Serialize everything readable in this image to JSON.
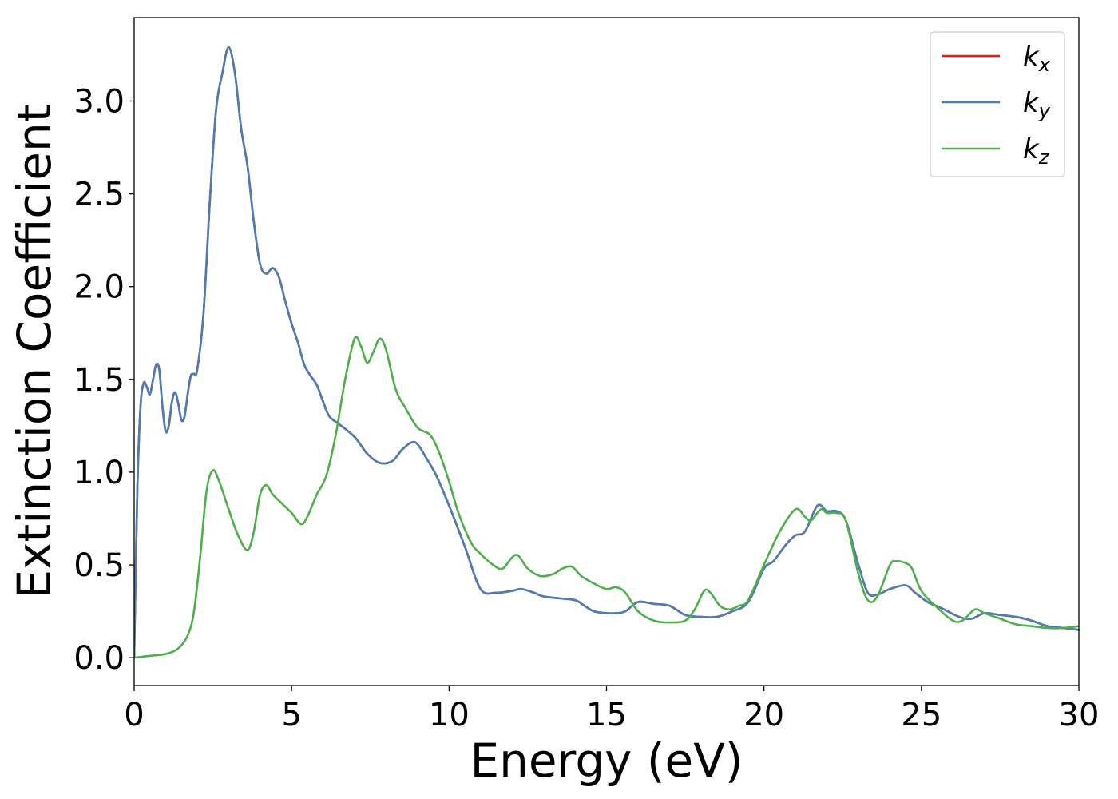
{
  "chart_data": {
    "type": "line",
    "xlabel": "Energy (eV)",
    "ylabel": "Extinction Coefficient",
    "xlim": [
      0,
      30
    ],
    "ylim": [
      -0.15,
      3.45
    ],
    "xticks": [
      "0",
      "5",
      "10",
      "15",
      "20",
      "25",
      "30"
    ],
    "xtick_values": [
      0,
      5,
      10,
      15,
      20,
      25,
      30
    ],
    "yticks": [
      "0.0",
      "0.5",
      "1.0",
      "1.5",
      "2.0",
      "2.5",
      "3.0"
    ],
    "ytick_values": [
      0,
      0.5,
      1.0,
      1.5,
      2.0,
      2.5,
      3.0
    ],
    "grid": false,
    "legend_position": "top-right",
    "series": [
      {
        "name": "k",
        "subscript": "x",
        "color": "#e41a1c",
        "points": [
          [
            0,
            0
          ],
          [
            0.1,
            0.9
          ],
          [
            0.2,
            1.35
          ],
          [
            0.3,
            1.48
          ],
          [
            0.4,
            1.46
          ],
          [
            0.5,
            1.42
          ],
          [
            0.6,
            1.5
          ],
          [
            0.7,
            1.58
          ],
          [
            0.8,
            1.55
          ],
          [
            0.9,
            1.35
          ],
          [
            1.0,
            1.22
          ],
          [
            1.1,
            1.25
          ],
          [
            1.2,
            1.38
          ],
          [
            1.3,
            1.43
          ],
          [
            1.4,
            1.37
          ],
          [
            1.5,
            1.28
          ],
          [
            1.6,
            1.3
          ],
          [
            1.7,
            1.42
          ],
          [
            1.8,
            1.52
          ],
          [
            1.9,
            1.53
          ],
          [
            2.0,
            1.55
          ],
          [
            2.2,
            1.85
          ],
          [
            2.4,
            2.45
          ],
          [
            2.6,
            2.95
          ],
          [
            2.8,
            3.15
          ],
          [
            3.0,
            3.29
          ],
          [
            3.2,
            3.15
          ],
          [
            3.4,
            2.85
          ],
          [
            3.6,
            2.65
          ],
          [
            3.8,
            2.35
          ],
          [
            4.0,
            2.12
          ],
          [
            4.2,
            2.07
          ],
          [
            4.4,
            2.1
          ],
          [
            4.6,
            2.05
          ],
          [
            4.8,
            1.92
          ],
          [
            5.0,
            1.8
          ],
          [
            5.2,
            1.7
          ],
          [
            5.4,
            1.58
          ],
          [
            5.6,
            1.52
          ],
          [
            5.8,
            1.47
          ],
          [
            6.0,
            1.38
          ],
          [
            6.2,
            1.3
          ],
          [
            6.5,
            1.26
          ],
          [
            7.0,
            1.19
          ],
          [
            7.4,
            1.1
          ],
          [
            7.8,
            1.05
          ],
          [
            8.2,
            1.06
          ],
          [
            8.5,
            1.12
          ],
          [
            8.8,
            1.16
          ],
          [
            9.0,
            1.15
          ],
          [
            9.3,
            1.07
          ],
          [
            9.6,
            0.98
          ],
          [
            10.0,
            0.82
          ],
          [
            10.5,
            0.6
          ],
          [
            11.0,
            0.37
          ],
          [
            11.5,
            0.35
          ],
          [
            12.0,
            0.36
          ],
          [
            12.3,
            0.37
          ],
          [
            12.7,
            0.35
          ],
          [
            13.0,
            0.33
          ],
          [
            13.5,
            0.32
          ],
          [
            14.0,
            0.31
          ],
          [
            14.3,
            0.28
          ],
          [
            14.6,
            0.25
          ],
          [
            15.0,
            0.24
          ],
          [
            15.3,
            0.24
          ],
          [
            15.6,
            0.25
          ],
          [
            16.0,
            0.3
          ],
          [
            16.5,
            0.29
          ],
          [
            17.0,
            0.28
          ],
          [
            17.5,
            0.23
          ],
          [
            18.0,
            0.22
          ],
          [
            18.5,
            0.22
          ],
          [
            19.0,
            0.25
          ],
          [
            19.5,
            0.3
          ],
          [
            20.0,
            0.48
          ],
          [
            20.3,
            0.52
          ],
          [
            20.7,
            0.61
          ],
          [
            21.0,
            0.66
          ],
          [
            21.3,
            0.68
          ],
          [
            21.7,
            0.82
          ],
          [
            22.0,
            0.79
          ],
          [
            22.3,
            0.79
          ],
          [
            22.6,
            0.74
          ],
          [
            23.0,
            0.5
          ],
          [
            23.3,
            0.35
          ],
          [
            23.6,
            0.34
          ],
          [
            24.0,
            0.37
          ],
          [
            24.5,
            0.39
          ],
          [
            24.8,
            0.35
          ],
          [
            25.2,
            0.3
          ],
          [
            25.6,
            0.27
          ],
          [
            26.2,
            0.22
          ],
          [
            26.6,
            0.21
          ],
          [
            27.0,
            0.24
          ],
          [
            27.5,
            0.23
          ],
          [
            28.0,
            0.22
          ],
          [
            28.5,
            0.2
          ],
          [
            29.0,
            0.17
          ],
          [
            29.5,
            0.16
          ],
          [
            30.0,
            0.15
          ]
        ]
      },
      {
        "name": "k",
        "subscript": "y",
        "color": "#4a7db3",
        "points": [
          [
            0,
            0
          ],
          [
            0.1,
            0.9
          ],
          [
            0.2,
            1.35
          ],
          [
            0.3,
            1.48
          ],
          [
            0.4,
            1.46
          ],
          [
            0.5,
            1.42
          ],
          [
            0.6,
            1.5
          ],
          [
            0.7,
            1.58
          ],
          [
            0.8,
            1.55
          ],
          [
            0.9,
            1.35
          ],
          [
            1.0,
            1.22
          ],
          [
            1.1,
            1.25
          ],
          [
            1.2,
            1.38
          ],
          [
            1.3,
            1.43
          ],
          [
            1.4,
            1.37
          ],
          [
            1.5,
            1.28
          ],
          [
            1.6,
            1.3
          ],
          [
            1.7,
            1.42
          ],
          [
            1.8,
            1.52
          ],
          [
            1.9,
            1.53
          ],
          [
            2.0,
            1.55
          ],
          [
            2.2,
            1.85
          ],
          [
            2.4,
            2.45
          ],
          [
            2.6,
            2.95
          ],
          [
            2.8,
            3.15
          ],
          [
            3.0,
            3.29
          ],
          [
            3.2,
            3.15
          ],
          [
            3.4,
            2.85
          ],
          [
            3.6,
            2.65
          ],
          [
            3.8,
            2.35
          ],
          [
            4.0,
            2.12
          ],
          [
            4.2,
            2.07
          ],
          [
            4.4,
            2.1
          ],
          [
            4.6,
            2.05
          ],
          [
            4.8,
            1.92
          ],
          [
            5.0,
            1.8
          ],
          [
            5.2,
            1.7
          ],
          [
            5.4,
            1.58
          ],
          [
            5.6,
            1.52
          ],
          [
            5.8,
            1.47
          ],
          [
            6.0,
            1.38
          ],
          [
            6.2,
            1.3
          ],
          [
            6.5,
            1.26
          ],
          [
            7.0,
            1.19
          ],
          [
            7.4,
            1.1
          ],
          [
            7.8,
            1.05
          ],
          [
            8.2,
            1.06
          ],
          [
            8.5,
            1.12
          ],
          [
            8.8,
            1.16
          ],
          [
            9.0,
            1.15
          ],
          [
            9.3,
            1.07
          ],
          [
            9.6,
            0.98
          ],
          [
            10.0,
            0.82
          ],
          [
            10.5,
            0.6
          ],
          [
            11.0,
            0.37
          ],
          [
            11.5,
            0.35
          ],
          [
            12.0,
            0.36
          ],
          [
            12.3,
            0.37
          ],
          [
            12.7,
            0.35
          ],
          [
            13.0,
            0.33
          ],
          [
            13.5,
            0.32
          ],
          [
            14.0,
            0.31
          ],
          [
            14.3,
            0.28
          ],
          [
            14.6,
            0.25
          ],
          [
            15.0,
            0.24
          ],
          [
            15.3,
            0.24
          ],
          [
            15.6,
            0.25
          ],
          [
            16.0,
            0.3
          ],
          [
            16.5,
            0.29
          ],
          [
            17.0,
            0.28
          ],
          [
            17.5,
            0.23
          ],
          [
            18.0,
            0.22
          ],
          [
            18.5,
            0.22
          ],
          [
            19.0,
            0.25
          ],
          [
            19.5,
            0.3
          ],
          [
            20.0,
            0.48
          ],
          [
            20.3,
            0.52
          ],
          [
            20.7,
            0.61
          ],
          [
            21.0,
            0.66
          ],
          [
            21.3,
            0.68
          ],
          [
            21.7,
            0.82
          ],
          [
            22.0,
            0.79
          ],
          [
            22.3,
            0.79
          ],
          [
            22.6,
            0.74
          ],
          [
            23.0,
            0.5
          ],
          [
            23.3,
            0.35
          ],
          [
            23.6,
            0.34
          ],
          [
            24.0,
            0.37
          ],
          [
            24.5,
            0.39
          ],
          [
            24.8,
            0.35
          ],
          [
            25.2,
            0.3
          ],
          [
            25.6,
            0.27
          ],
          [
            26.2,
            0.22
          ],
          [
            26.6,
            0.21
          ],
          [
            27.0,
            0.24
          ],
          [
            27.5,
            0.23
          ],
          [
            28.0,
            0.22
          ],
          [
            28.5,
            0.2
          ],
          [
            29.0,
            0.17
          ],
          [
            29.5,
            0.16
          ],
          [
            30.0,
            0.15
          ]
        ]
      },
      {
        "name": "k",
        "subscript": "z",
        "color": "#4daf4a",
        "points": [
          [
            0,
            0
          ],
          [
            0.5,
            0.01
          ],
          [
            1.0,
            0.02
          ],
          [
            1.4,
            0.05
          ],
          [
            1.7,
            0.12
          ],
          [
            1.9,
            0.25
          ],
          [
            2.1,
            0.55
          ],
          [
            2.3,
            0.9
          ],
          [
            2.5,
            1.01
          ],
          [
            2.7,
            0.95
          ],
          [
            3.0,
            0.8
          ],
          [
            3.3,
            0.66
          ],
          [
            3.6,
            0.58
          ],
          [
            3.8,
            0.68
          ],
          [
            4.0,
            0.88
          ],
          [
            4.2,
            0.93
          ],
          [
            4.4,
            0.88
          ],
          [
            4.7,
            0.83
          ],
          [
            5.0,
            0.78
          ],
          [
            5.3,
            0.72
          ],
          [
            5.5,
            0.76
          ],
          [
            5.8,
            0.88
          ],
          [
            6.1,
            0.98
          ],
          [
            6.4,
            1.2
          ],
          [
            6.7,
            1.5
          ],
          [
            7.0,
            1.72
          ],
          [
            7.2,
            1.68
          ],
          [
            7.4,
            1.59
          ],
          [
            7.6,
            1.65
          ],
          [
            7.8,
            1.72
          ],
          [
            8.0,
            1.66
          ],
          [
            8.3,
            1.45
          ],
          [
            8.6,
            1.35
          ],
          [
            9.0,
            1.24
          ],
          [
            9.4,
            1.2
          ],
          [
            9.7,
            1.1
          ],
          [
            10.0,
            0.95
          ],
          [
            10.3,
            0.78
          ],
          [
            10.7,
            0.62
          ],
          [
            11.0,
            0.56
          ],
          [
            11.4,
            0.5
          ],
          [
            11.7,
            0.48
          ],
          [
            12.0,
            0.54
          ],
          [
            12.2,
            0.55
          ],
          [
            12.5,
            0.48
          ],
          [
            12.9,
            0.44
          ],
          [
            13.3,
            0.45
          ],
          [
            13.6,
            0.48
          ],
          [
            13.9,
            0.49
          ],
          [
            14.2,
            0.44
          ],
          [
            14.6,
            0.4
          ],
          [
            15.0,
            0.37
          ],
          [
            15.3,
            0.38
          ],
          [
            15.6,
            0.35
          ],
          [
            16.0,
            0.25
          ],
          [
            16.5,
            0.2
          ],
          [
            17.0,
            0.19
          ],
          [
            17.5,
            0.2
          ],
          [
            17.8,
            0.26
          ],
          [
            18.1,
            0.36
          ],
          [
            18.3,
            0.35
          ],
          [
            18.6,
            0.28
          ],
          [
            18.9,
            0.26
          ],
          [
            19.2,
            0.28
          ],
          [
            19.5,
            0.31
          ],
          [
            20.0,
            0.5
          ],
          [
            20.5,
            0.68
          ],
          [
            21.0,
            0.8
          ],
          [
            21.3,
            0.76
          ],
          [
            21.5,
            0.74
          ],
          [
            21.8,
            0.8
          ],
          [
            22.0,
            0.78
          ],
          [
            22.3,
            0.78
          ],
          [
            22.6,
            0.74
          ],
          [
            23.0,
            0.45
          ],
          [
            23.3,
            0.31
          ],
          [
            23.6,
            0.33
          ],
          [
            24.0,
            0.5
          ],
          [
            24.2,
            0.52
          ],
          [
            24.5,
            0.51
          ],
          [
            24.7,
            0.48
          ],
          [
            25.0,
            0.36
          ],
          [
            25.5,
            0.27
          ],
          [
            26.0,
            0.2
          ],
          [
            26.3,
            0.2
          ],
          [
            26.7,
            0.26
          ],
          [
            27.0,
            0.24
          ],
          [
            27.5,
            0.21
          ],
          [
            28.0,
            0.18
          ],
          [
            28.5,
            0.17
          ],
          [
            29.0,
            0.16
          ],
          [
            29.5,
            0.16
          ],
          [
            30.0,
            0.17
          ]
        ]
      }
    ]
  }
}
